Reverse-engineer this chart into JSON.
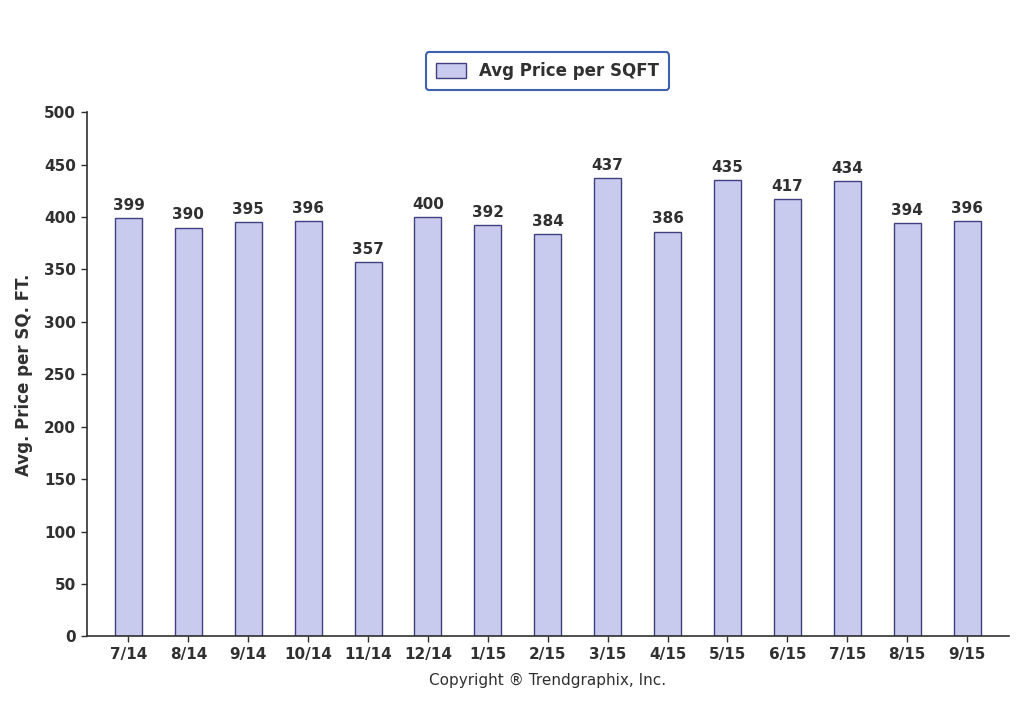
{
  "categories": [
    "7/14",
    "8/14",
    "9/14",
    "10/14",
    "11/14",
    "12/14",
    "1/15",
    "2/15",
    "3/15",
    "4/15",
    "5/15",
    "6/15",
    "7/15",
    "8/15",
    "9/15"
  ],
  "values": [
    399,
    390,
    395,
    396,
    357,
    400,
    392,
    384,
    437,
    386,
    435,
    417,
    434,
    394,
    396
  ],
  "bar_color": "#c8cbee",
  "bar_edge_color": "#404080",
  "ylabel": "Avg. Price per SQ. FT.",
  "xlabel": "Copyright ® Trendgraphix, Inc.",
  "legend_label": "Avg Price per SQFT",
  "ylim": [
    0,
    500
  ],
  "yticks": [
    0,
    50,
    100,
    150,
    200,
    250,
    300,
    350,
    400,
    450,
    500
  ],
  "background_color": "#ffffff",
  "bar_width": 0.45,
  "value_fontsize": 11,
  "axis_fontsize": 11,
  "legend_fontsize": 12,
  "xlabel_fontsize": 11,
  "ylabel_fontsize": 12,
  "legend_edge_color": "#4060b0",
  "spine_color": "#303030",
  "text_color": "#303030"
}
